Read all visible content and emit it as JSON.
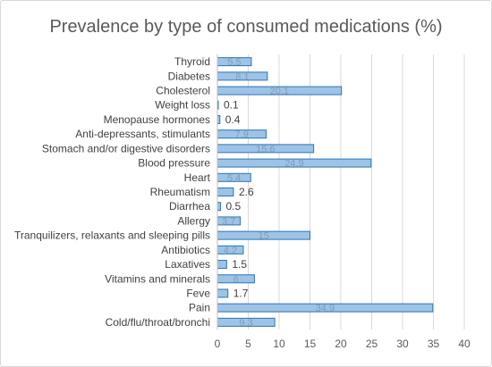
{
  "chart_data": {
    "type": "bar",
    "orientation": "horizontal",
    "title": "Prevalence by type of consumed medications (%)",
    "categories": [
      "Thyroid",
      "Diabetes",
      "Cholesterol",
      "Weight loss",
      "Menopause hormones",
      "Anti-depressants, stimulants",
      "Stomach and/or digestive disorders",
      "Blood pressure",
      "Heart",
      "Rheumatism",
      "Diarrhea",
      "Allergy",
      "Tranquilizers, relaxants and sleeping pills",
      "Antibiotics",
      "Laxatives",
      "Vitamins and minerals",
      "Feve",
      "Pain",
      "Cold/flu/throat/bronchi"
    ],
    "values": [
      5.5,
      8.1,
      20.1,
      0.1,
      0.4,
      7.9,
      15.6,
      24.9,
      5.4,
      2.6,
      0.5,
      3.7,
      15,
      4.2,
      1.5,
      6.0,
      1.7,
      34.9,
      9.3
    ],
    "data_labels": [
      "5.5",
      "8.1",
      "20.1",
      "0.1",
      "0.4",
      "7.9",
      "15.6",
      "24.9",
      "5.4",
      "2.6",
      "0.5",
      "3.7",
      "15",
      "4.2",
      "1.5",
      "6",
      "1.7",
      "34.9",
      "9.3"
    ],
    "xlim": [
      0,
      40
    ],
    "xticks": [
      "0",
      "5",
      "10",
      "15",
      "20",
      "25",
      "30",
      "35",
      "40"
    ],
    "grid": true,
    "colors": {
      "bar_fill": "#9dc3e6",
      "bar_stroke": "#2e75b6",
      "grid": "#d9d9d9"
    }
  }
}
